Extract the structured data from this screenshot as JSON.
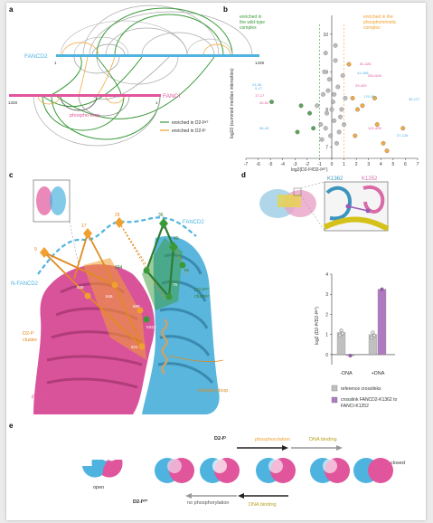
{
  "panels": {
    "a": {
      "letter": "a",
      "fancd2_label": "FANCD2",
      "fanci_label": "FANCI",
      "phospho_label": "phospho-loop",
      "tick_fancd2_end": "1439",
      "tick_fanci_start": "1328",
      "tick_fanci_end": "1",
      "tick_fancd2_start": "1",
      "legend": [
        {
          "label": "enriched in D2-Iᵂᵀ",
          "color": "#3a9a3a"
        },
        {
          "label": "enriched in D2-Iᴰ",
          "color": "#f0a030"
        }
      ],
      "colors": {
        "fancd2": "#4fb3e0",
        "fanci": "#e0559b",
        "loop": "#f0a030",
        "gray": "#999999",
        "green": "#3a9a3a"
      }
    },
    "b": {
      "letter": "b",
      "wt_label_lines": [
        "enriched in",
        "the wild-type",
        "complex"
      ],
      "phospho_label_lines": [
        "enriched in the",
        "phosphomimetic",
        "complex"
      ],
      "ylabel": "log10 (summed median intensities)",
      "xlabel": "log2(D2-Iᴰ/D2-Iᵂᵀ)",
      "chart_data": {
        "type": "scatter",
        "xlabel": "log2(D2-Iᴰ/D2-Iᵂᵀ)",
        "ylabel": "log10 (summed median intensities)",
        "xlim": [
          -7,
          7
        ],
        "ylim": [
          6.7,
          10.5
        ],
        "xticks": [
          "-7",
          "-6",
          "-5",
          "-4",
          "-3",
          "-2",
          "-1",
          "0",
          "1",
          "2",
          "3",
          "4",
          "5",
          "6",
          "7"
        ],
        "yticks": [
          "10",
          "9",
          "8",
          "7"
        ],
        "series": [
          {
            "points": [
              [
                -0.5,
                9.5
              ],
              [
                0.3,
                9.3
              ],
              [
                -0.2,
                8.8
              ],
              [
                0.5,
                8.6
              ],
              [
                -0.7,
                8.4
              ],
              [
                0.1,
                8.2
              ],
              [
                0.8,
                8.0
              ],
              [
                -0.4,
                7.9
              ],
              [
                0.2,
                7.7
              ],
              [
                -0.9,
                7.6
              ],
              [
                0.6,
                7.4
              ],
              [
                -0.1,
                7.3
              ],
              [
                0.4,
                7.1
              ],
              [
                -0.6,
                9.0
              ],
              [
                0.9,
                8.9
              ],
              [
                -0.3,
                8.5
              ],
              [
                0.0,
                8.0
              ],
              [
                0.7,
                7.8
              ],
              [
                -0.8,
                7.2
              ],
              [
                0.3,
                9.7
              ],
              [
                1.1,
                8.3
              ],
              [
                -1.2,
                8.1
              ],
              [
                0.2,
                8.4
              ],
              [
                -0.5,
                7.5
              ],
              [
                1.0,
                7.6
              ]
            ]
          },
          {
            "points": [
              [
                -4.9,
                8.2
              ],
              [
                -2.5,
                8.1
              ],
              [
                -1.8,
                7.9
              ],
              [
                -1.5,
                7.5
              ],
              [
                -2.8,
                7.4
              ]
            ]
          },
          {
            "points": [
              [
                1.4,
                9.2
              ],
              [
                1.7,
                8.3
              ],
              [
                2.1,
                8.0
              ],
              [
                2.5,
                8.1
              ],
              [
                3.5,
                8.3
              ],
              [
                3.7,
                7.6
              ],
              [
                4.2,
                7.1
              ],
              [
                4.5,
                6.9
              ],
              [
                5.8,
                7.5
              ],
              [
                1.9,
                7.3
              ]
            ]
          }
        ],
        "annotations": [
          "36-127",
          "61-426",
          "41-458",
          "253-528",
          "176-36",
          "29-429",
          "9-17",
          "17-17",
          "24-36",
          "40-52",
          "56-43",
          "121-435",
          "37-128"
        ]
      }
    },
    "c": {
      "letter": "c",
      "fancd2_label": "FANCD2",
      "fanci_label": "FANCI",
      "nfancd2_label": "N-FANCD2",
      "d2ip_label_lines": [
        "D2-Iᴰ",
        "cluster"
      ],
      "d2iwt_label_lines": [
        "D2-Iᵂᵀ",
        "cluster"
      ],
      "phospho_label": "phospho-loop",
      "residues": [
        "9",
        "17",
        "29",
        "36",
        "40",
        "694",
        "75",
        "85",
        "K923",
        "589",
        "621",
        "628",
        "646"
      ]
    },
    "d": {
      "letter": "d",
      "k1362_label": "K1362",
      "k1252_label": "K1252",
      "ylabel": "log2 (D2-Iᴰ/D2-Iᵂᵀ)",
      "legend": [
        {
          "label": "reference crosslinks",
          "color": "#c0c0c0"
        },
        {
          "label_lines": [
            "crosslink FANCD2-K1362 to",
            "FANCI-K1252"
          ],
          "color": "#b07ac0"
        }
      ],
      "chart_data": {
        "type": "bar",
        "categories": [
          "-DNA",
          "+DNA"
        ],
        "ylabel": "log2 (D2-Iᴰ/D2-Iᵂᵀ)",
        "ylim": [
          -0.5,
          4
        ],
        "yticks": [
          "4",
          "3",
          "2",
          "1",
          "0"
        ],
        "series": [
          {
            "name": "reference crosslinks",
            "values": [
              1.1,
              1.0
            ]
          },
          {
            "name": "crosslink FANCD2-K1362 to FANCI-K1252",
            "values": [
              -0.05,
              3.25
            ]
          }
        ]
      }
    },
    "e": {
      "letter": "e",
      "open_label": "open",
      "closed_label": "closed",
      "d2ip_label": "D2-Iᴰ",
      "d2iwt_label": "D2-Iᵂᵀ",
      "phosphorylation_label": "phosphorylation",
      "dna_binding_top": "DNA binding",
      "no_phos_label": "no phosphorylation",
      "dna_binding_bottom": "DNA binding"
    }
  }
}
